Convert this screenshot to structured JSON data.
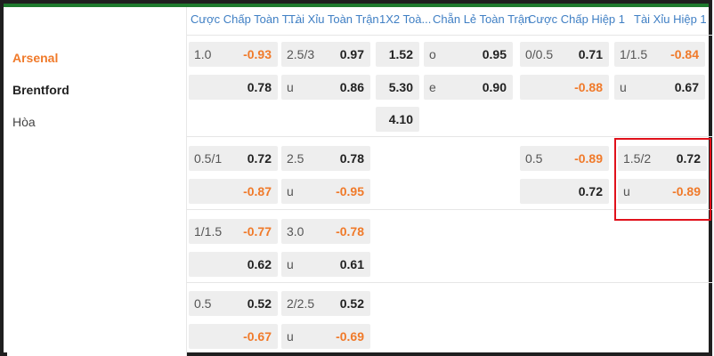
{
  "headers": [
    "Cược Chấp Toàn T...",
    "Tài Xỉu Toàn Trận",
    "1X2 Toà...",
    "Chẵn Lẻ Toàn Trận",
    "Cược Chấp Hiệp 1",
    "Tài Xỉu Hiệp 1"
  ],
  "teams": {
    "home": "Arsenal",
    "away": "Brentford",
    "draw": "Hòa"
  },
  "main": {
    "handicap_ft": {
      "line": "1.0",
      "home": "-0.93",
      "away": "0.78"
    },
    "ou_ft": {
      "line": "2.5/3",
      "over": "0.97",
      "under_lbl": "u",
      "under": "0.86"
    },
    "x12": {
      "home": "1.52",
      "away": "5.30",
      "draw": "4.10"
    },
    "oddeven": {
      "odd_lbl": "o",
      "odd": "0.95",
      "even_lbl": "e",
      "even": "0.90"
    },
    "handicap_h1": {
      "line": "0/0.5",
      "home": "0.71",
      "away": "-0.88"
    },
    "ou_h1": {
      "line": "1/1.5",
      "over": "-0.84",
      "under_lbl": "u",
      "under": "0.67"
    }
  },
  "alt1": {
    "handicap_ft": {
      "line": "0.5/1",
      "home": "0.72",
      "away": "-0.87"
    },
    "ou_ft": {
      "line": "2.5",
      "over": "0.78",
      "under_lbl": "u",
      "under": "-0.95"
    },
    "handicap_h1": {
      "line": "0.5",
      "home": "-0.89",
      "away": "0.72"
    },
    "ou_h1": {
      "line": "1.5/2",
      "over": "0.72",
      "under_lbl": "u",
      "under": "-0.89"
    }
  },
  "alt2": {
    "handicap_ft": {
      "line": "1/1.5",
      "home": "-0.77",
      "away": "0.62"
    },
    "ou_ft": {
      "line": "3.0",
      "over": "-0.78",
      "under_lbl": "u",
      "under": "0.61"
    }
  },
  "alt3": {
    "handicap_ft": {
      "line": "0.5",
      "home": "0.52",
      "away": "-0.67"
    },
    "ou_ft": {
      "line": "2/2.5",
      "over": "0.52",
      "under_lbl": "u",
      "under": "-0.69"
    }
  },
  "colors": {
    "accent_orange": "#f07a2a",
    "header_blue": "#3f7fc4",
    "highlight_red": "#e0111b"
  }
}
